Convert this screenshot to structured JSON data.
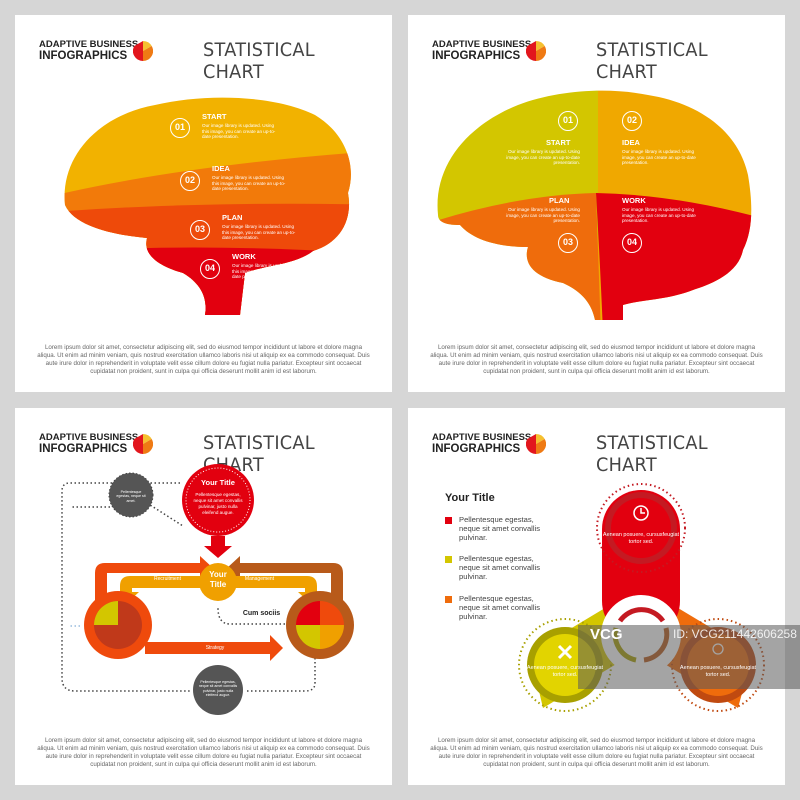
{
  "header": {
    "brand_line1": "ADAPTIVE BUSINESS",
    "brand_line2": "INFOGRAPHICS",
    "title": "STATISTICAL CHART"
  },
  "body_text": "Lorem ipsum dolor sit amet, consectetur adipiscing elit, sed do eiusmod tempor incididunt ut labore et dolore magna aliqua. Ut enim ad minim veniam, quis nostrud exercitation ullamco laboris nisi ut aliquip ex ea commodo consequat. Duis aute irure dolor in reprehenderit in voluptate velit esse cillum dolore eu fugiat nulla pariatur. Excepteur sint occaecat cupidatat non proident, sunt in culpa qui officia deserunt mollit anim id est laborum.",
  "colors": {
    "yellow": "#f2b200",
    "amber": "#f0a800",
    "orange": "#ef6c0c",
    "red_orange": "#ee4a0a",
    "red": "#e2000f",
    "olive": "#d3c600",
    "gray": "#555555",
    "brown": "#b85a1a"
  },
  "panel1": {
    "steps": [
      {
        "num": "01",
        "label": "START",
        "text": "Our image library is updated. Using this image, you can create an up-to-date presentation."
      },
      {
        "num": "02",
        "label": "IDEA",
        "text": "Our image library is updated. Using this image, you can create an up-to-date presentation."
      },
      {
        "num": "03",
        "label": "PLAN",
        "text": "Our image library is updated. Using this image, you can create an up-to-date presentation."
      },
      {
        "num": "04",
        "label": "WORK",
        "text": "Our image library is updated. Using this image, you can create an up-to-date presentation."
      }
    ]
  },
  "panel2": {
    "steps": [
      {
        "num": "01",
        "label": "START",
        "text": "Our image library is updated. Using image, you can create an up-to-date presentation."
      },
      {
        "num": "02",
        "label": "IDEA",
        "text": "Our image library is updated. Using image, you can create an up-to-date presentation."
      },
      {
        "num": "03",
        "label": "PLAN",
        "text": "Our image library is updated. Using image, you can create an up-to-date presentation."
      },
      {
        "num": "04",
        "label": "WORK",
        "text": "Our image library is updated. Using image, you can create an up-to-date presentation."
      }
    ]
  },
  "panel3": {
    "main_title": "Your Title",
    "main_text": "Pellentesque egestas, neque sit amet convallis pulvinar, justo nulla eleifend augue.",
    "center_title": "Your Title",
    "strategy": "Strategy",
    "recruitment": "Recruitment",
    "management": "Management",
    "cum_sociis": "Cum sociis",
    "gray_top_text": "Pellentesque egestas, neque sit amet.",
    "gray_bottom_text": "Pellentesque egestas, neque sit amet convallis pulvinar, justo nulla eleifend augue."
  },
  "panel4": {
    "title": "Your Title",
    "bullets": [
      {
        "text": "Pellentesque egestas, neque sit amet convallis pulvinar.",
        "color": "#e2000f"
      },
      {
        "text": "Pellentesque egestas, neque sit amet convallis pulvinar.",
        "color": "#d3c600"
      },
      {
        "text": "Pellentesque egestas, neque sit amet convallis pulvinar.",
        "color": "#ef6c0c"
      }
    ],
    "top_text": "Aenean posuere, cursusfeugiat tortor sed.",
    "left_text": "Aenean posuere, cursusfeugiat tortor sed.",
    "right_text": "Aenean posuere, cursusfeugiat tortor sed."
  },
  "watermark": {
    "logo": "VCG",
    "id": "ID: VCG211442606258"
  }
}
